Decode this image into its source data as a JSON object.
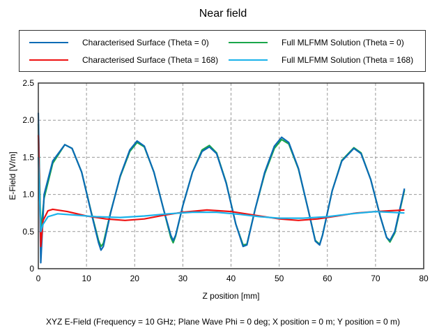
{
  "chart_data": {
    "type": "line",
    "title": "Near field",
    "xlabel": "Z position [mm]",
    "ylabel": "E-Field [V/m]",
    "caption": "XYZ E-Field (Frequency = 10 GHz; Plane Wave Phi = 0 deg; X position = 0 m; Y position = 0 m)",
    "xlim": [
      0,
      80
    ],
    "ylim": [
      0,
      2.5
    ],
    "xticks": [
      "0",
      "10",
      "20",
      "30",
      "40",
      "50",
      "60",
      "70",
      "80"
    ],
    "yticks": [
      "0",
      "0.5",
      "1.0",
      "1.5",
      "2.0",
      "2.5"
    ],
    "grid": true,
    "legend_position": "top",
    "series": [
      {
        "name": "Full MLFMM Solution (Theta = 0)",
        "color": "#1aa64a",
        "x": [
          0,
          0.5,
          1.2,
          3,
          5.5,
          7,
          9,
          11,
          12.5,
          13,
          13.5,
          15,
          17,
          19,
          20.5,
          22,
          24,
          26,
          27.5,
          28,
          28.5,
          30,
          32,
          34,
          35.5,
          37,
          39,
          41,
          42.5,
          43.3,
          45,
          47,
          49,
          50.5,
          52,
          54,
          56,
          57.5,
          58.4,
          59,
          61,
          63,
          65.5,
          67,
          69,
          71,
          72.3,
          73,
          74,
          76
        ],
        "y": [
          1.95,
          0.5,
          0.95,
          1.42,
          1.67,
          1.62,
          1.3,
          0.76,
          0.38,
          0.3,
          0.34,
          0.76,
          1.24,
          1.58,
          1.7,
          1.64,
          1.3,
          0.8,
          0.42,
          0.35,
          0.44,
          0.85,
          1.3,
          1.6,
          1.66,
          1.56,
          1.16,
          0.6,
          0.32,
          0.33,
          0.8,
          1.28,
          1.62,
          1.74,
          1.68,
          1.34,
          0.8,
          0.38,
          0.33,
          0.45,
          1.05,
          1.46,
          1.63,
          1.56,
          1.2,
          0.7,
          0.42,
          0.36,
          0.48,
          1.06
        ]
      },
      {
        "name": "Characterised Surface (Theta = 0)",
        "color": "#0b6bb5",
        "x": [
          0,
          0.5,
          1.2,
          3,
          5.5,
          7,
          9,
          11,
          12.5,
          13,
          13.5,
          15,
          17,
          19,
          20.5,
          22,
          24,
          26,
          27.5,
          28,
          28.5,
          30,
          32,
          34,
          35.5,
          37,
          39,
          41,
          42.5,
          43.3,
          45,
          47,
          49,
          50.5,
          52,
          54,
          56,
          57.5,
          58.4,
          59,
          61,
          63,
          65.5,
          67,
          69,
          71,
          72.3,
          73,
          74,
          76
        ],
        "y": [
          2.1,
          0.08,
          1.0,
          1.45,
          1.67,
          1.62,
          1.3,
          0.75,
          0.35,
          0.25,
          0.3,
          0.75,
          1.25,
          1.6,
          1.72,
          1.65,
          1.3,
          0.8,
          0.45,
          0.38,
          0.45,
          0.85,
          1.3,
          1.58,
          1.64,
          1.55,
          1.15,
          0.6,
          0.3,
          0.32,
          0.8,
          1.3,
          1.65,
          1.77,
          1.7,
          1.35,
          0.8,
          0.37,
          0.32,
          0.45,
          1.05,
          1.45,
          1.62,
          1.55,
          1.2,
          0.7,
          0.42,
          0.38,
          0.5,
          1.08
        ]
      },
      {
        "name": "Characterised Surface (Theta = 168)",
        "color": "#ee1111",
        "x": [
          0,
          0.5,
          1,
          2,
          3,
          6,
          10,
          14,
          18,
          22,
          26,
          30,
          35,
          40,
          45,
          50,
          54,
          58,
          62,
          66,
          70,
          76
        ],
        "y": [
          1.8,
          0.3,
          0.65,
          0.78,
          0.8,
          0.77,
          0.71,
          0.67,
          0.65,
          0.67,
          0.72,
          0.76,
          0.79,
          0.77,
          0.72,
          0.67,
          0.65,
          0.67,
          0.71,
          0.75,
          0.77,
          0.79
        ]
      },
      {
        "name": "Full MLFMM Solution (Theta = 168)",
        "color": "#19b2ea",
        "x": [
          0,
          0.5,
          1,
          2,
          4,
          8,
          12,
          17,
          22,
          27,
          32,
          37,
          42,
          46,
          50,
          55,
          60,
          65,
          70,
          76
        ],
        "y": [
          1.5,
          0.5,
          0.6,
          0.7,
          0.74,
          0.72,
          0.7,
          0.69,
          0.71,
          0.74,
          0.76,
          0.76,
          0.73,
          0.7,
          0.68,
          0.68,
          0.7,
          0.74,
          0.77,
          0.75
        ]
      }
    ]
  }
}
